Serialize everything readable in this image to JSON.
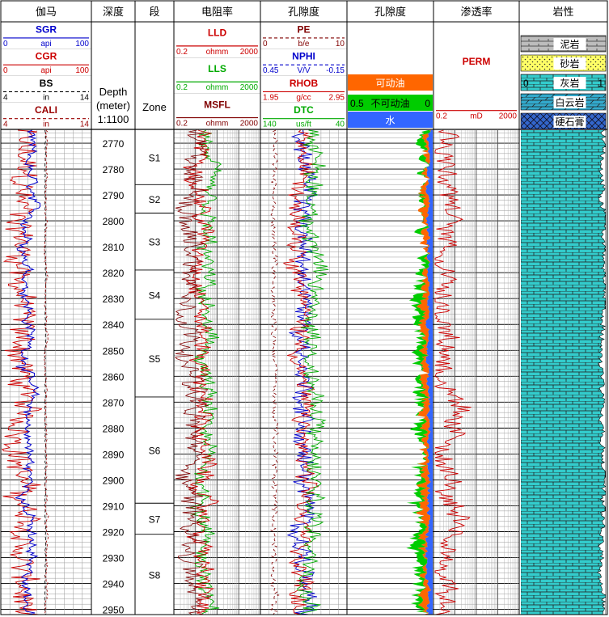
{
  "chart_data": {
    "type": "line",
    "depth_unit": "meter",
    "depth_range": [
      2765,
      2952
    ],
    "depth_ticks": [
      2770,
      2780,
      2790,
      2800,
      2810,
      2820,
      2830,
      2840,
      2850,
      2860,
      2870,
      2880,
      2890,
      2900,
      2910,
      2920,
      2930,
      2940,
      2950
    ],
    "tracks": [
      {
        "title": "伽马",
        "curves": [
          {
            "name": "SGR",
            "color": "#0000cc",
            "min": "0",
            "unit": "api",
            "max": "100",
            "dash": false
          },
          {
            "name": "CGR",
            "color": "#cc0000",
            "min": "0",
            "unit": "api",
            "max": "100",
            "dash": false
          },
          {
            "name": "BS",
            "color": "#000000",
            "min": "4",
            "unit": "in",
            "max": "14",
            "dash": true
          },
          {
            "name": "CALI",
            "color": "#990000",
            "min": "4",
            "unit": "in",
            "max": "14",
            "dash": true
          }
        ]
      },
      {
        "title": "深度",
        "depth_label": [
          "Depth",
          "(meter)",
          "1:1100"
        ]
      },
      {
        "title": "段",
        "zone_label": "Zone"
      },
      {
        "title": "电阻率",
        "curves": [
          {
            "name": "LLD",
            "color": "#cc0000",
            "min": "0.2",
            "unit": "ohmm",
            "max": "2000",
            "dash": false
          },
          {
            "name": "LLS",
            "color": "#00aa00",
            "min": "0.2",
            "unit": "ohmm",
            "max": "2000",
            "dash": false
          },
          {
            "name": "MSFL",
            "color": "#800000",
            "min": "0.2",
            "unit": "ohmm",
            "max": "2000",
            "dash": false
          }
        ]
      },
      {
        "title": "孔隙度",
        "curves": [
          {
            "name": "PE",
            "color": "#800000",
            "min": "0",
            "unit": "b/e",
            "max": "10",
            "dash": true
          },
          {
            "name": "NPHI",
            "color": "#0000cc",
            "min": "0.45",
            "unit": "V/V",
            "max": "-0.15",
            "dash": true
          },
          {
            "name": "RHOB",
            "color": "#cc0000",
            "min": "1.95",
            "unit": "g/cc",
            "max": "2.95",
            "dash": false
          },
          {
            "name": "DTC",
            "color": "#00aa00",
            "min": "140",
            "unit": "us/ft",
            "max": "40",
            "dash": false
          }
        ]
      },
      {
        "title": "孔隙度",
        "fills": [
          {
            "name": "可动油",
            "color": "#ff6600"
          },
          {
            "name": "不可动油",
            "color": "#00cc00",
            "left": "0.5",
            "right": "0"
          },
          {
            "name": "水",
            "color": "#3366ff"
          }
        ]
      },
      {
        "title": "渗透率",
        "curves": [
          {
            "name": "PERM",
            "color": "#cc0000",
            "min": "0.2",
            "unit": "mD",
            "max": "2000",
            "dash": false
          }
        ]
      },
      {
        "title": "岩性",
        "lithology": [
          {
            "name": "泥岩"
          },
          {
            "name": "砂岩"
          },
          {
            "name": "灰岩",
            "left": "0",
            "right": "1"
          },
          {
            "name": "白云岩"
          },
          {
            "name": "硬石膏"
          }
        ]
      }
    ],
    "zones": [
      {
        "name": "S1",
        "top": 2765,
        "bottom": 2786
      },
      {
        "name": "S2",
        "top": 2786,
        "bottom": 2797
      },
      {
        "name": "S3",
        "top": 2797,
        "bottom": 2819
      },
      {
        "name": "S4",
        "top": 2819,
        "bottom": 2838
      },
      {
        "name": "S5",
        "top": 2838,
        "bottom": 2868
      },
      {
        "name": "S6",
        "top": 2868,
        "bottom": 2909
      },
      {
        "name": "S7",
        "top": 2909,
        "bottom": 2921
      },
      {
        "name": "S8",
        "top": 2921,
        "bottom": 2952
      }
    ]
  }
}
